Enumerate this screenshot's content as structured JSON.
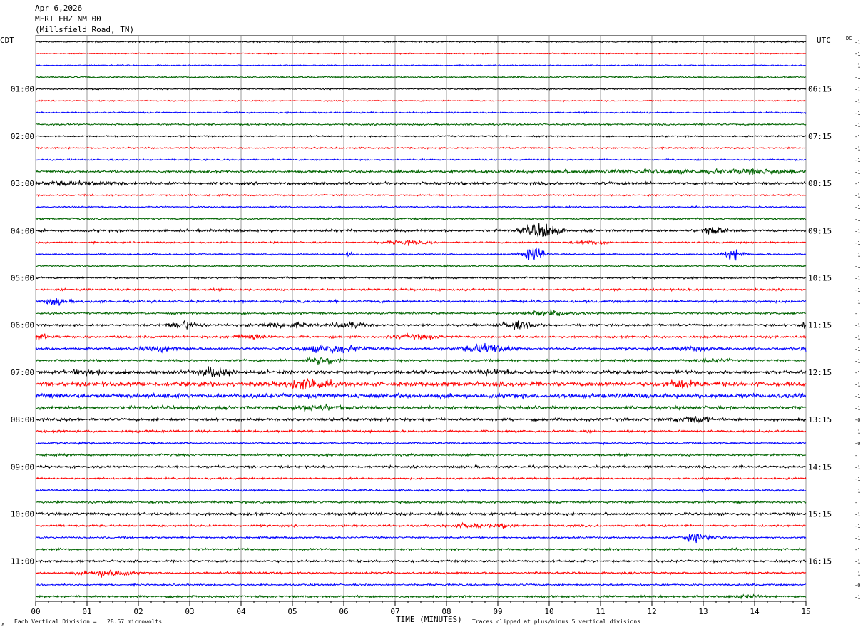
{
  "header": {
    "date": "Apr 6,2026",
    "station": "MFRT EHZ NM 00",
    "location": "(Millsfield Road, TN)"
  },
  "timezone_left": "CDT",
  "timezone_right": "UTC",
  "dc_label": "DC",
  "footer": {
    "scale": "Each Vertical Division =   28.57 microvolts",
    "clip": "Traces clipped at plus/minus 5 vertical divisions",
    "corner": "∧"
  },
  "chart_data": {
    "type": "line",
    "xlabel": "TIME (MINUTES)",
    "xlim": [
      0,
      15
    ],
    "x_ticks": [
      "00",
      "01",
      "02",
      "03",
      "04",
      "05",
      "06",
      "07",
      "08",
      "09",
      "10",
      "11",
      "12",
      "13",
      "14",
      "15"
    ],
    "left_time_labels": [
      "01:00",
      "02:00",
      "03:00",
      "04:00",
      "05:00",
      "06:00",
      "07:00",
      "08:00",
      "09:00",
      "10:00",
      "11:00"
    ],
    "right_time_labels": [
      "06:15",
      "07:15",
      "08:15",
      "09:15",
      "10:15",
      "11:15",
      "12:15",
      "13:15",
      "14:15",
      "15:15",
      "16:15"
    ],
    "trace_count": 48,
    "trace_colors": [
      "#000000",
      "#ff0000",
      "#0000ff",
      "#006400"
    ],
    "dc_offsets": [
      "-1",
      "-1",
      "-1",
      "-1",
      "-1",
      "-1",
      "-1",
      "-1",
      "-1",
      "-1",
      "-1",
      "-1",
      "-1",
      "-1",
      "-1",
      "-1",
      "-1",
      "-1",
      "-1",
      "-1",
      "-1",
      "-1",
      "-1",
      "-1",
      "-1",
      "-1",
      "-1",
      "-1",
      "-1",
      "-1",
      "-1",
      "-1",
      "-0",
      "-1",
      "-0",
      "-1",
      "-1",
      "-1",
      "-1",
      "-1",
      "-1",
      "-1",
      "-1",
      "-1",
      "-1",
      "-1",
      "-0",
      "-1"
    ]
  }
}
